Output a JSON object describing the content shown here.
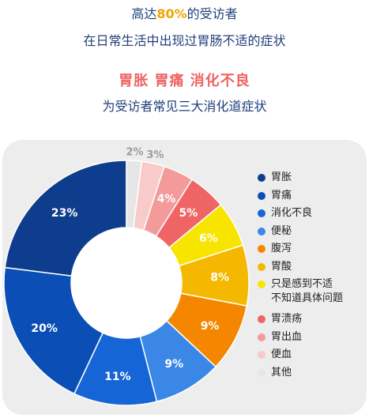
{
  "header": {
    "line1_pre": "高达",
    "line1_highlight": "80%",
    "line1_post": "的受访者",
    "line2": "在日常生活中出现过胃肠不适的症状",
    "line3": "胃胀 胃痛 消化不良",
    "line4": "为受访者常见三大消化道症状"
  },
  "chart_data": {
    "type": "pie",
    "categories": [
      "胃胀",
      "胃痛",
      "消化不良",
      "便秘",
      "腹泻",
      "胃酸",
      "只是感到不适 不知道具体问题",
      "胃溃疡",
      "胃出血",
      "便血",
      "其他"
    ],
    "legend_lines": [
      [
        "胃胀"
      ],
      [
        "胃痛"
      ],
      [
        "消化不良"
      ],
      [
        "便秘"
      ],
      [
        "腹泻"
      ],
      [
        "胃酸"
      ],
      [
        "只是感到不适",
        "不知道具体问题"
      ],
      [
        "胃溃疡"
      ],
      [
        "胃出血"
      ],
      [
        "便血"
      ],
      [
        "其他"
      ]
    ],
    "values": [
      23,
      20,
      11,
      9,
      9,
      8,
      6,
      5,
      4,
      3,
      2
    ],
    "data_labels": [
      "23%",
      "20%",
      "11%",
      "9%",
      "9%",
      "8%",
      "6%",
      "5%",
      "4%",
      "3%",
      "2%"
    ],
    "colors": [
      "#0d3d8c",
      "#0b4eb6",
      "#1565d6",
      "#3a87e6",
      "#f58700",
      "#f5b800",
      "#f7e500",
      "#ef6464",
      "#f39b9b",
      "#f8caca",
      "#e6e6e6"
    ],
    "label_colors": [
      "#ffffff",
      "#ffffff",
      "#ffffff",
      "#ffffff",
      "#ffffff",
      "#ffffff",
      "#ffffff",
      "#ffffff",
      "#ffffff",
      "#9b9b9b",
      "#9b9b9b"
    ],
    "direction": "counterclockwise",
    "donut": true,
    "legend_position": "right"
  }
}
